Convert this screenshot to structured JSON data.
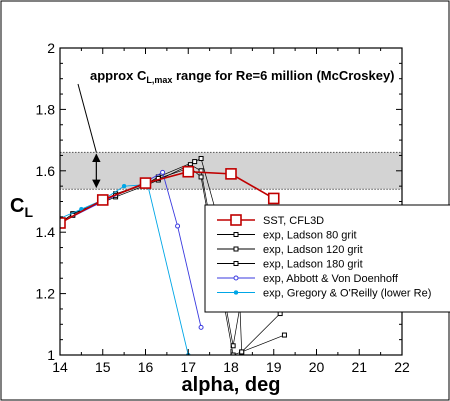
{
  "chart_data": {
    "type": "line",
    "xlabel": "alpha, deg",
    "ylabel": "C",
    "ylabel_sub": "L",
    "xlim": [
      14,
      22
    ],
    "ylim": [
      1.0,
      2.0
    ],
    "x_ticks": [
      14,
      15,
      16,
      17,
      18,
      19,
      20,
      21,
      22
    ],
    "y_ticks": [
      1.0,
      1.2,
      1.4,
      1.6,
      1.8,
      2.0
    ],
    "x_tick_labels": [
      "14",
      "15",
      "16",
      "17",
      "18",
      "19",
      "20",
      "21",
      "22"
    ],
    "y_tick_labels": [
      "1",
      "1.2",
      "1.4",
      "1.6",
      "1.8",
      "2"
    ],
    "grid": false,
    "legend_position": "right, middle",
    "band": {
      "y_range": [
        1.54,
        1.66
      ],
      "color": "#d3d3d3",
      "annotation_pre": "approx C",
      "annotation_sub": "L,max",
      "annotation_post": " range for Re=6 million (McCroskey)",
      "arrow_x": 14.85
    },
    "series": [
      {
        "name": "SST, CFL3D",
        "color": "#c00000",
        "marker": "open-square",
        "marker_size": 10,
        "line_width": 1.6,
        "x": [
          14,
          15,
          16,
          17,
          18,
          19
        ],
        "y": [
          1.43,
          1.505,
          1.56,
          1.597,
          1.59,
          1.51
        ]
      },
      {
        "name": "exp, Ladson 80 grit",
        "color": "#000000",
        "marker": "open-square",
        "marker_size": 4,
        "line_width": 0.7,
        "x": [
          14.05,
          14.3,
          15.05,
          15.3,
          16.05,
          16.3,
          17.15,
          17.3,
          18.2,
          18.25,
          19.25
        ],
        "y": [
          1.435,
          1.46,
          1.505,
          1.525,
          1.56,
          1.58,
          1.63,
          1.64,
          1.19,
          1.01,
          1.065
        ]
      },
      {
        "name": "exp, Ladson 120 grit",
        "color": "#000000",
        "marker": "open-square",
        "marker_size": 4,
        "line_width": 0.7,
        "x": [
          14.05,
          14.3,
          15.05,
          15.3,
          16.05,
          16.3,
          17.05,
          17.3,
          18.05,
          18.25,
          19.25
        ],
        "y": [
          1.435,
          1.46,
          1.5,
          1.515,
          1.555,
          1.57,
          1.62,
          1.6,
          1.03,
          1.19,
          1.19
        ]
      },
      {
        "name": "exp, Ladson 180 grit",
        "color": "#000000",
        "marker": "open-square",
        "marker_size": 4,
        "line_width": 0.7,
        "x": [
          14.05,
          14.3,
          15.05,
          15.3,
          16.05,
          16.3,
          17.05,
          17.3,
          18.05,
          18.25,
          19.15
        ],
        "y": [
          1.43,
          1.455,
          1.505,
          1.52,
          1.56,
          1.575,
          1.61,
          1.58,
          1.0,
          1.01,
          1.135
        ]
      },
      {
        "name": "exp, Abbott & Von Doenhoff",
        "color": "#3a3adf",
        "marker": "open-circle",
        "marker_size": 4,
        "line_width": 0.9,
        "x": [
          14.0,
          15.0,
          15.95,
          16.4,
          16.75,
          17.3
        ],
        "y": [
          1.43,
          1.5,
          1.56,
          1.595,
          1.42,
          1.09
        ]
      },
      {
        "name": "exp, Gregory & O'Reilly (lower Re)",
        "color": "#00a6e6",
        "marker": "filled-circle",
        "marker_size": 4,
        "line_width": 0.9,
        "x": [
          14.0,
          14.5,
          15.0,
          15.5,
          16.05,
          17.0
        ],
        "y": [
          1.445,
          1.475,
          1.505,
          1.55,
          1.555,
          1.0
        ]
      }
    ]
  }
}
